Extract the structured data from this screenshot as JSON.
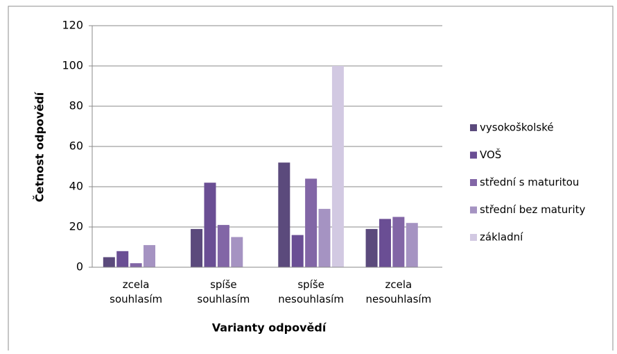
{
  "chart_data": {
    "type": "bar",
    "categories": [
      [
        "zcela",
        "souhlasím"
      ],
      [
        "spíše",
        "souhlasím"
      ],
      [
        "spíše",
        "nesouhlasím"
      ],
      [
        "zcela",
        "nesouhlasím"
      ]
    ],
    "series": [
      {
        "name": "vysokoškolské",
        "color": "#5b4a7c",
        "values": [
          5,
          19,
          52,
          19
        ]
      },
      {
        "name": "VOŠ",
        "color": "#6a4e94",
        "values": [
          8,
          42,
          16,
          24
        ]
      },
      {
        "name": "střední s maturitou",
        "color": "#8266a6",
        "values": [
          2,
          21,
          44,
          25
        ]
      },
      {
        "name": "střední bez maturity",
        "color": "#a593c2",
        "values": [
          11,
          15,
          29,
          22
        ]
      },
      {
        "name": "základní",
        "color": "#d2c9e2",
        "values": [
          0,
          0,
          100,
          0
        ]
      }
    ],
    "y_label": "Četnost odpovědí",
    "x_label": "Varianty odpovědí",
    "ylim": [
      0,
      120
    ],
    "yticks": [
      0,
      20,
      40,
      60,
      80,
      100,
      120
    ],
    "grid": true,
    "legend": "right"
  }
}
